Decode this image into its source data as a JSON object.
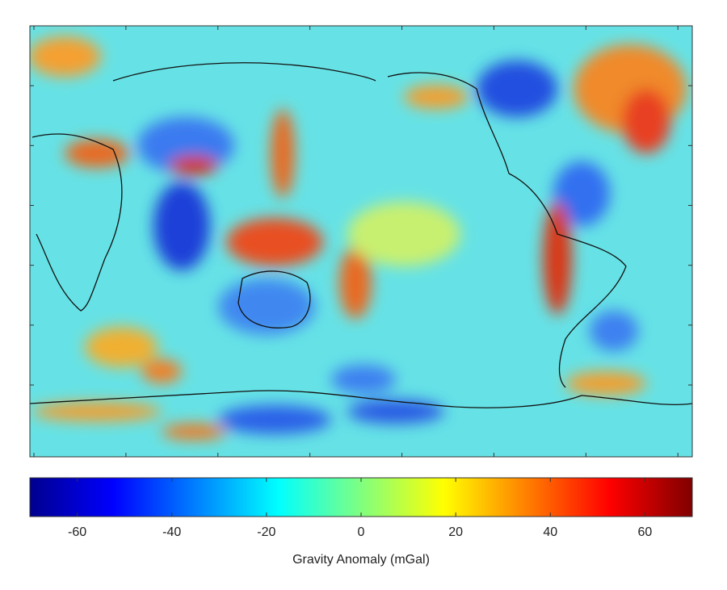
{
  "colorbar": {
    "label": "Gravity Anomaly (mGal)",
    "colormap": "jet",
    "lim": [
      -70,
      70
    ],
    "ticks": [
      -60,
      -40,
      -20,
      0,
      20,
      40,
      60
    ]
  }
}
